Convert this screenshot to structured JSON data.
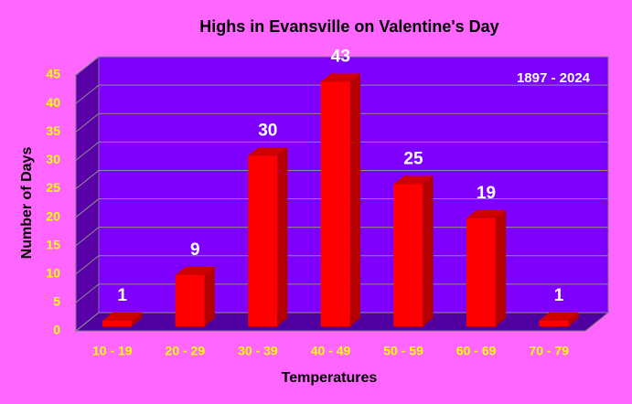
{
  "chart_data": {
    "type": "bar3d",
    "title": "Highs in Evansville on Valentine's Day",
    "annotation": "1897 - 2024",
    "x_label": "Temperatures",
    "y_label": "Number of Days",
    "categories": [
      "10 - 19",
      "20 - 29",
      "30 - 39",
      "40 - 49",
      "50 - 59",
      "60 - 69",
      "70 - 79"
    ],
    "values": [
      1,
      9,
      30,
      43,
      25,
      19,
      1
    ],
    "color": "#ff0000",
    "ylim": [
      0,
      45
    ],
    "yticks": [
      0,
      5,
      10,
      15,
      20,
      25,
      30,
      35,
      40,
      45
    ],
    "grid": true
  }
}
